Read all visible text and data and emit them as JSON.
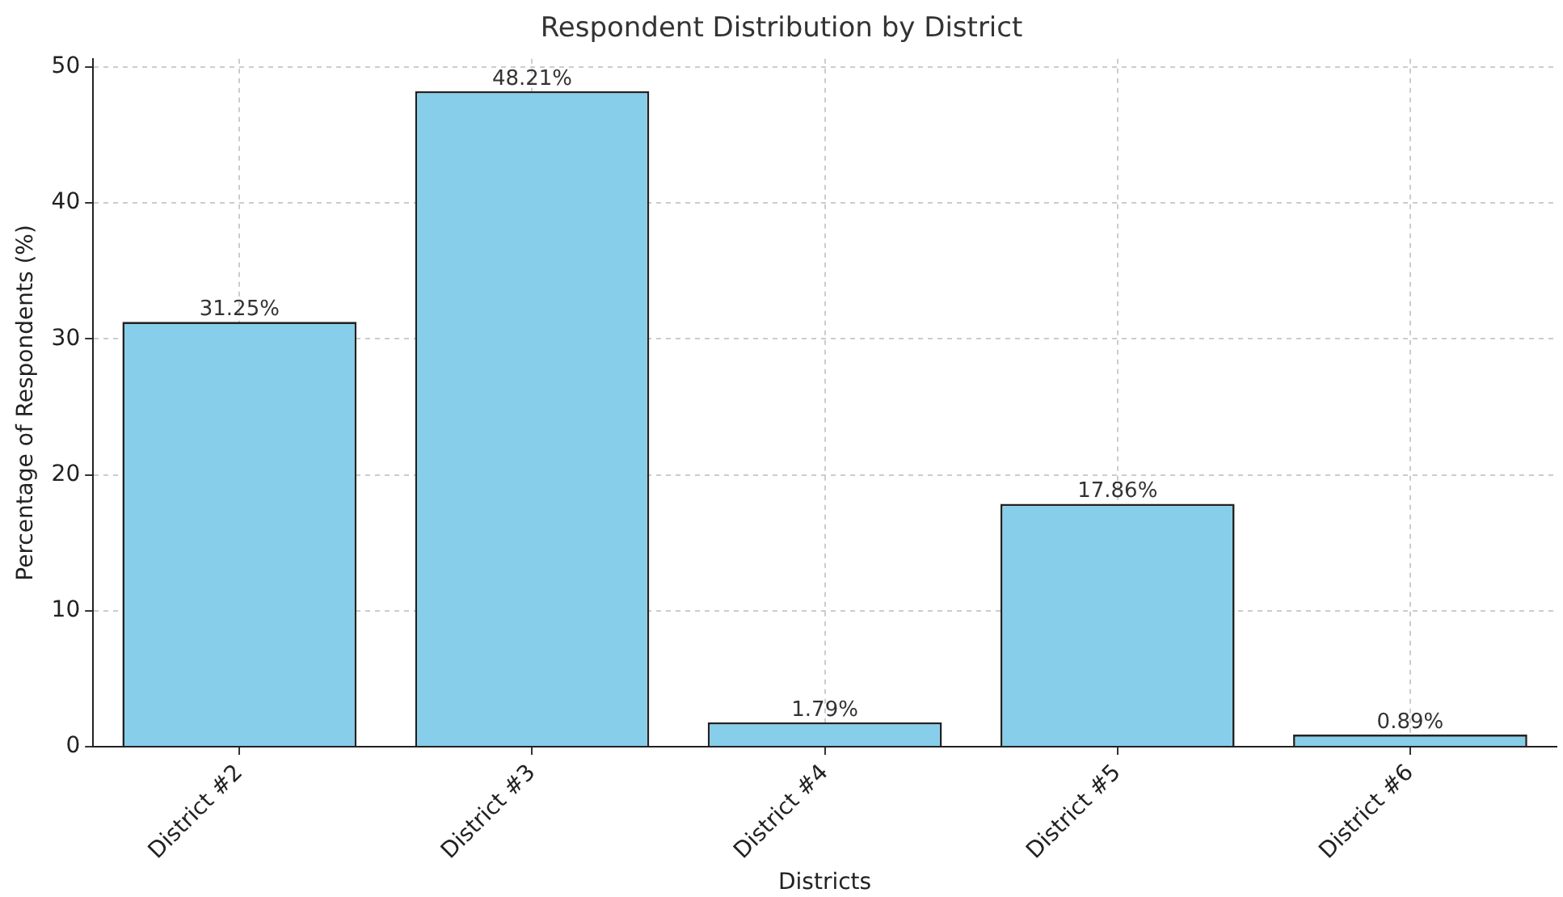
{
  "chart_data": {
    "type": "bar",
    "title": "Respondent Distribution by District",
    "xlabel": "Districts",
    "ylabel": "Percentage of Respondents (%)",
    "categories": [
      "District #2",
      "District #3",
      "District #4",
      "District #5",
      "District #6"
    ],
    "values": [
      31.25,
      48.21,
      1.79,
      17.86,
      0.89
    ],
    "value_labels": [
      "31.25%",
      "48.21%",
      "1.79%",
      "17.86%",
      "0.89%"
    ],
    "color": "#87ceeb",
    "ylim": [
      0,
      50.6
    ],
    "yticks": [
      0,
      10,
      20,
      30,
      40,
      50
    ],
    "grid": true,
    "legend": false
  }
}
